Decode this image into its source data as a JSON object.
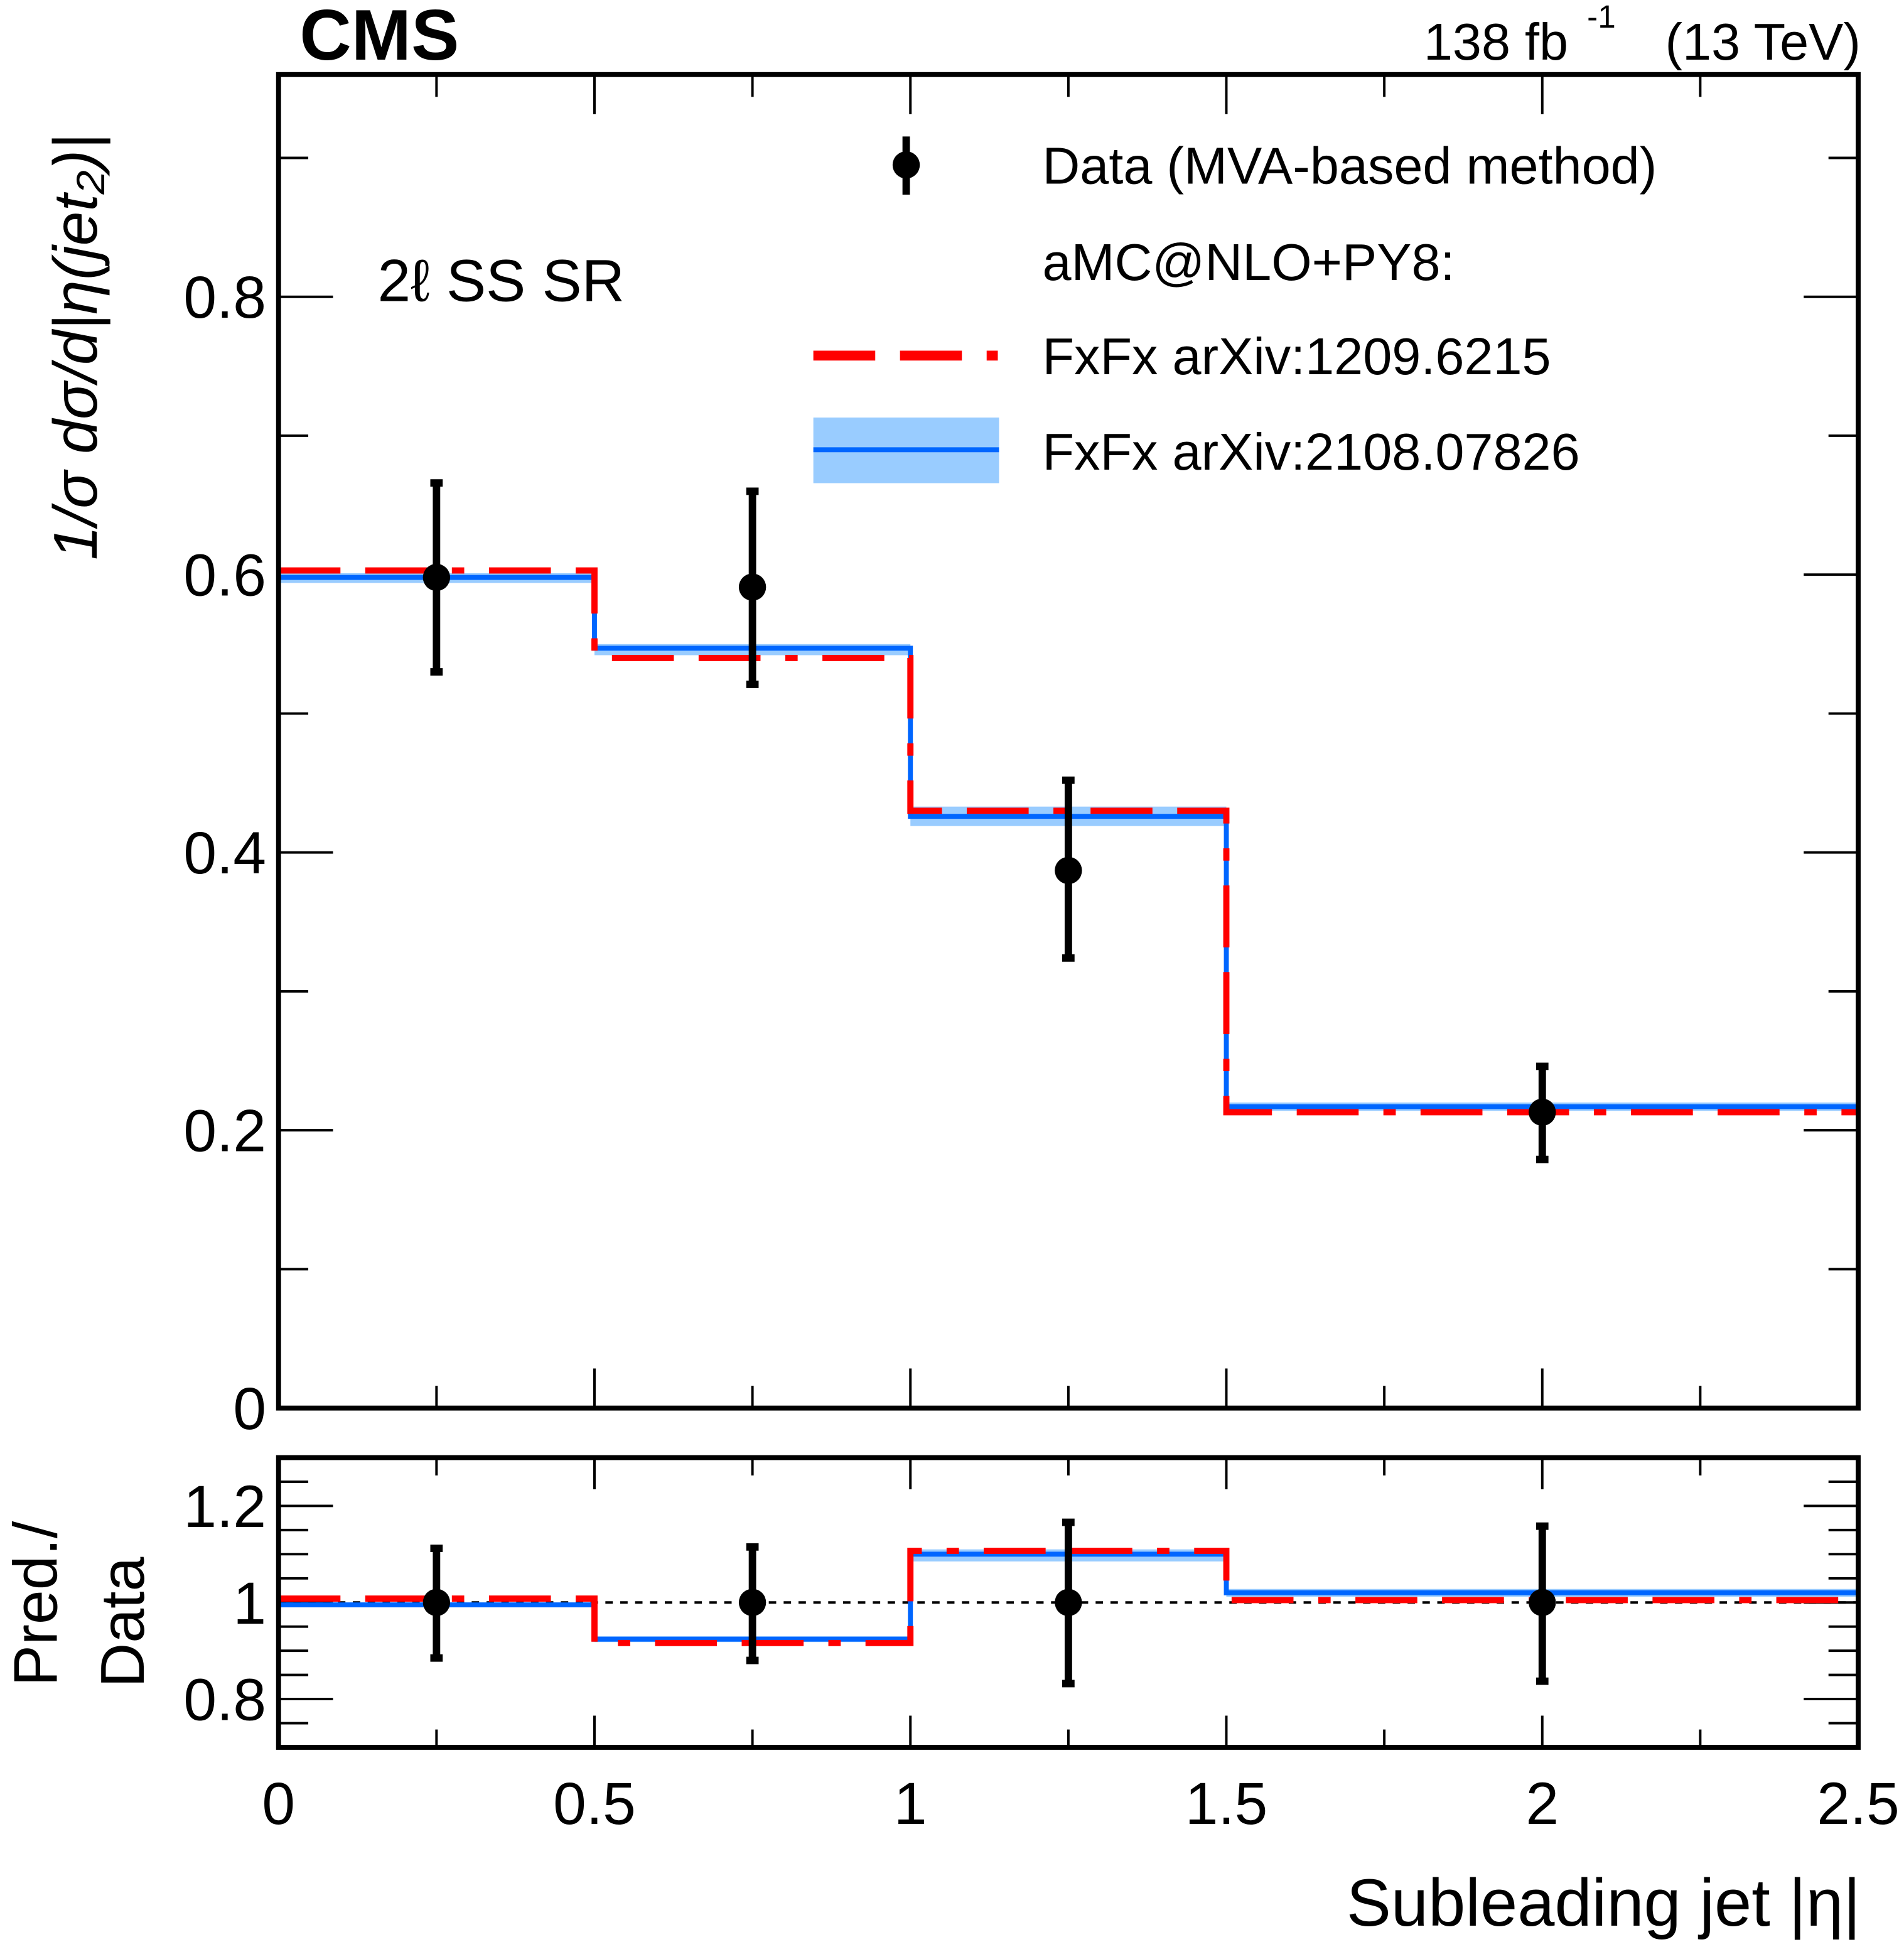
{
  "chart_data": [
    {
      "type": "line",
      "panel": "main",
      "experiment": "CMS",
      "lumi_label": "138 fb",
      "lumi_sup": "-1",
      "energy_label": "(13 TeV)",
      "region_label": "2ℓ SS SR",
      "ylabel": "1/σ dσ/d|η(jet₂)|",
      "xlim": [
        0,
        2.5
      ],
      "ylim": [
        0,
        0.96
      ],
      "yticks": [
        "0",
        "0.2",
        "0.4",
        "0.6",
        "0.8"
      ],
      "ytick_values": [
        0,
        0.2,
        0.4,
        0.6,
        0.8
      ],
      "bin_edges": [
        0,
        0.5,
        1.0,
        1.5,
        2.5
      ],
      "legend": {
        "placement": "top-right",
        "data_label": "Data (MVA-based method)",
        "header": "aMC@NLO+PY8:",
        "red_label": "FxFx arXiv:1209.6215",
        "blue_label": "FxFx arXiv:2108.07826"
      },
      "series": [
        {
          "name": "Data (MVA-based method)",
          "color": "#000000",
          "x": [
            0.25,
            0.75,
            1.25,
            2.0
          ],
          "values": [
            0.598,
            0.591,
            0.387,
            0.213
          ],
          "err_up": [
            0.666,
            0.66,
            0.452,
            0.246
          ],
          "err_down": [
            0.53,
            0.521,
            0.324,
            0.179
          ]
        },
        {
          "name": "FxFx arXiv:1209.6215",
          "color": "#ff0000",
          "values": [
            0.603,
            0.54,
            0.43,
            0.213
          ]
        },
        {
          "name": "FxFx arXiv:2108.07826",
          "color": "#0066ff",
          "band_color": "#99ccff",
          "values": [
            0.598,
            0.547,
            0.426,
            0.217
          ],
          "band_low": [
            0.594,
            0.542,
            0.419,
            0.214
          ],
          "band_high": [
            0.601,
            0.55,
            0.433,
            0.22
          ]
        }
      ]
    },
    {
      "type": "line",
      "panel": "ratio",
      "ylabel_line1": "Pred./",
      "ylabel_line2": "Data",
      "xlabel": "Subleading jet |η|",
      "xlim": [
        0,
        2.5
      ],
      "ylim": [
        0.7,
        1.3
      ],
      "xticks": [
        "0",
        "0.5",
        "1",
        "1.5",
        "2",
        "2.5"
      ],
      "xtick_values": [
        0,
        0.5,
        1,
        1.5,
        2,
        2.5
      ],
      "yticks": [
        "0.8",
        "1",
        "1.2"
      ],
      "ytick_values": [
        0.8,
        1.0,
        1.2
      ],
      "bin_edges": [
        0,
        0.5,
        1.0,
        1.5,
        2.5
      ],
      "series": [
        {
          "name": "Data",
          "color": "#000000",
          "x": [
            0.25,
            0.75,
            1.25,
            2.0
          ],
          "values": [
            1,
            1,
            1,
            1
          ],
          "err_up": [
            1.112,
            1.115,
            1.166,
            1.158
          ],
          "err_down": [
            0.885,
            0.88,
            0.832,
            0.837
          ]
        },
        {
          "name": "FxFx arXiv:1209.6215",
          "color": "#ff0000",
          "values": [
            1.008,
            0.916,
            1.107,
            1.005
          ]
        },
        {
          "name": "FxFx arXiv:2108.07826",
          "color": "#0066ff",
          "band_color": "#99ccff",
          "values": [
            0.995,
            0.924,
            1.1,
            1.02
          ],
          "band_low": [
            0.99,
            0.918,
            1.085,
            1.012
          ],
          "band_high": [
            1.0,
            0.93,
            1.11,
            1.028
          ]
        }
      ]
    }
  ]
}
